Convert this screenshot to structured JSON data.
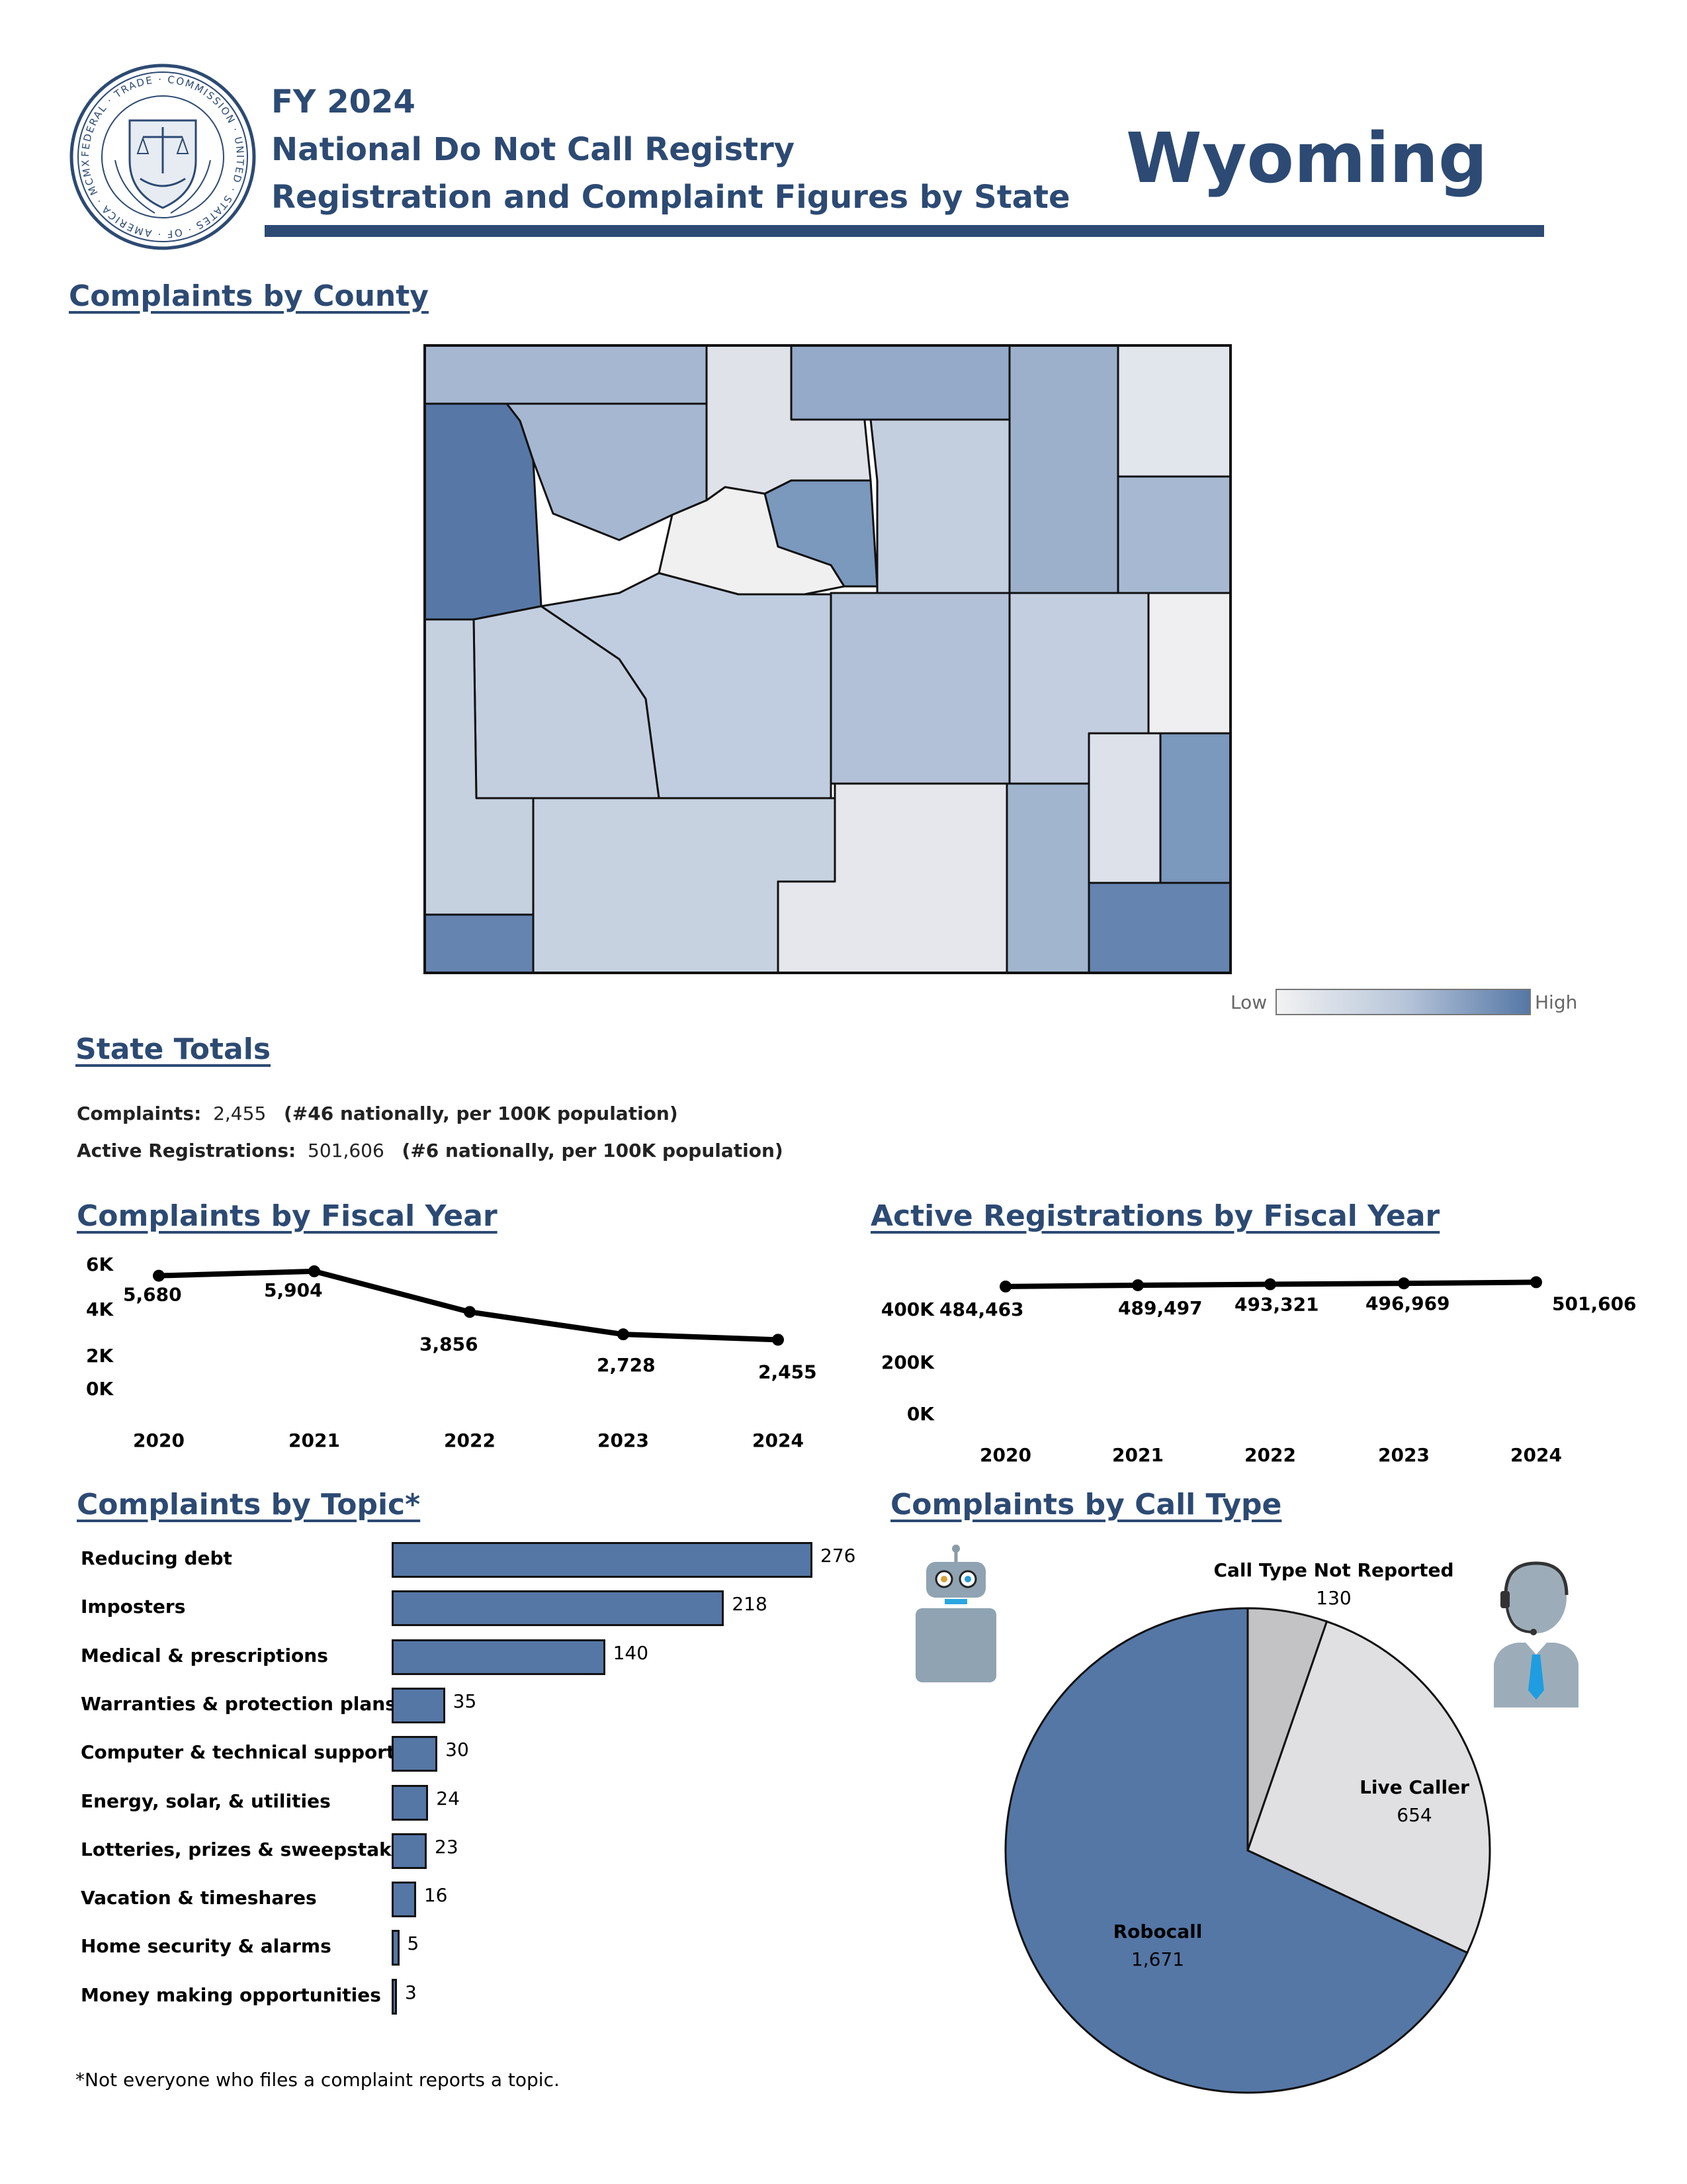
{
  "header": {
    "fiscal_year": "FY 2024",
    "registry": "National Do Not Call Registry",
    "subtitle": "Registration and Complaint Figures by State",
    "state": "Wyoming",
    "seal_text": "FEDERAL · TRADE · COMMISSION · UNITED · STATES · OF · AMERICA · MCMXV"
  },
  "colors": {
    "navy": "#2c4a73",
    "bar_fill": "#5577a6",
    "pie_robocall": "#5577a6",
    "pie_live": "#e0dfe2",
    "pie_not_reported": "#c3c3c6"
  },
  "county_section": {
    "title": "Complaints by County",
    "legend_low": "Low",
    "legend_high": "High"
  },
  "totals": {
    "title": "State Totals",
    "complaints_label": "Complaints:",
    "complaints_value": "2,455",
    "complaints_rank": "(#46 nationally, per 100K population)",
    "registrations_label": "Active Registrations:",
    "registrations_value": "501,606",
    "registrations_rank": "(#6 nationally, per 100K population)"
  },
  "chart_data": [
    {
      "type": "line",
      "title": "Complaints by Fiscal Year",
      "x": [
        "2020",
        "2021",
        "2022",
        "2023",
        "2024"
      ],
      "values": [
        5680,
        5904,
        3856,
        2728,
        2455
      ],
      "value_labels": [
        "5,680",
        "5,904",
        "3,856",
        "2,728",
        "2,455"
      ],
      "y_ticks": [
        "0K",
        "2K",
        "4K",
        "6K"
      ],
      "ylim": [
        0,
        6000
      ]
    },
    {
      "type": "line",
      "title": "Active Registrations by Fiscal Year",
      "x": [
        "2020",
        "2021",
        "2022",
        "2023",
        "2024"
      ],
      "values": [
        484463,
        489497,
        493321,
        496969,
        501606
      ],
      "value_labels": [
        "484,463",
        "489,497",
        "493,321",
        "496,969",
        "501,606"
      ],
      "y_ticks": [
        "0K",
        "200K",
        "400K"
      ],
      "ylim": [
        0,
        400000
      ]
    },
    {
      "type": "bar",
      "title": "Complaints by Topic*",
      "categories": [
        "Reducing debt",
        "Imposters",
        "Medical & prescriptions",
        "Warranties & protection plans",
        "Computer & technical support",
        "Energy, solar, & utilities",
        "Lotteries, prizes & sweepstakes",
        "Vacation & timeshares",
        "Home security & alarms",
        "Money making opportunities"
      ],
      "values": [
        276,
        218,
        140,
        35,
        30,
        24,
        23,
        16,
        5,
        3
      ]
    },
    {
      "type": "pie",
      "title": "Complaints by Call Type",
      "labels": [
        "Robocall",
        "Live Caller",
        "Call Type Not Reported"
      ],
      "values": [
        1671,
        654,
        130
      ],
      "value_labels": [
        "1,671",
        "654",
        "130"
      ]
    }
  ],
  "footnote": "*Not everyone who files a complaint reports a topic."
}
